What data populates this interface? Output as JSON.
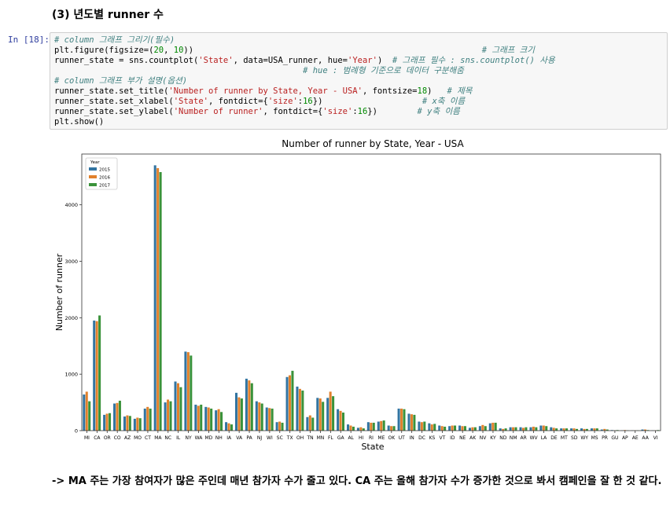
{
  "heading": "(3) 년도별 runner 수",
  "cell_prompt": "In [18]:",
  "code_lines": [
    [
      {
        "t": "# column 그래프 그리기(필수)",
        "c": "cm"
      }
    ],
    [
      {
        "t": "plt.figure(figsize=("
      },
      {
        "t": "20",
        "c": "nu"
      },
      {
        "t": ", "
      },
      {
        "t": "10",
        "c": "nu"
      },
      {
        "t": "))                                                          "
      },
      {
        "t": "# 그래프 크기",
        "c": "cm"
      }
    ],
    [
      {
        "t": "runner_state = sns.countplot("
      },
      {
        "t": "'State'",
        "c": "st"
      },
      {
        "t": ", data=USA_runner, hue="
      },
      {
        "t": "'Year'",
        "c": "st"
      },
      {
        "t": ")  "
      },
      {
        "t": "# 그래프 필수 : sns.countplot() 사용",
        "c": "cm"
      }
    ],
    [
      {
        "t": "                                                  "
      },
      {
        "t": "# hue : 범례형 기준으로 데이터 구분해줌",
        "c": "cm"
      }
    ],
    [
      {
        "t": "# column 그래프 부가 설명(옵션)",
        "c": "cm"
      }
    ],
    [
      {
        "t": "runner_state.set_title("
      },
      {
        "t": "'Number of runner by State, Year - USA'",
        "c": "st"
      },
      {
        "t": ", fontsize="
      },
      {
        "t": "18",
        "c": "nu"
      },
      {
        "t": ")   "
      },
      {
        "t": "# 제목",
        "c": "cm"
      }
    ],
    [
      {
        "t": "runner_state.set_xlabel("
      },
      {
        "t": "'State'",
        "c": "st"
      },
      {
        "t": ", fontdict={"
      },
      {
        "t": "'size'",
        "c": "st"
      },
      {
        "t": ":"
      },
      {
        "t": "16",
        "c": "nu"
      },
      {
        "t": "})                    "
      },
      {
        "t": "# x축 이름",
        "c": "cm"
      }
    ],
    [
      {
        "t": "runner_state.set_ylabel("
      },
      {
        "t": "'Number of runner'",
        "c": "st"
      },
      {
        "t": ", fontdict={"
      },
      {
        "t": "'size'",
        "c": "st"
      },
      {
        "t": ":"
      },
      {
        "t": "16",
        "c": "nu"
      },
      {
        "t": "})        "
      },
      {
        "t": "# y축 이름",
        "c": "cm"
      }
    ],
    [
      {
        "t": "plt.show()"
      }
    ]
  ],
  "note": "-> MA 주는 가장 참여자가 많은 주인데 매년 참가자 수가 줄고 있다. CA 주는 올해 참가자 수가 증가한 것으로 봐서 캠페인을 잘 한 것 같다.",
  "chart_data": {
    "type": "bar",
    "title": "Number of runner by State, Year - USA",
    "xlabel": "State",
    "ylabel": "Number of runner",
    "ylim": [
      0,
      4900
    ],
    "yticks": [
      0,
      1000,
      2000,
      3000,
      4000
    ],
    "grid": false,
    "legend": {
      "title": "Year",
      "placement": "top-left"
    },
    "colors": [
      "#3274a1",
      "#e1812c",
      "#3a923a"
    ],
    "categories": [
      "MI",
      "CA",
      "OR",
      "CO",
      "AZ",
      "MO",
      "CT",
      "MA",
      "NC",
      "IL",
      "NY",
      "WA",
      "MD",
      "NH",
      "IA",
      "VA",
      "PA",
      "NJ",
      "WI",
      "SC",
      "TX",
      "OH",
      "TN",
      "MN",
      "FL",
      "GA",
      "AL",
      "HI",
      "RI",
      "ME",
      "OK",
      "UT",
      "IN",
      "DC",
      "KS",
      "VT",
      "ID",
      "NE",
      "AK",
      "NV",
      "KY",
      "ND",
      "NM",
      "AR",
      "WV",
      "LA",
      "DE",
      "MT",
      "SD",
      "WY",
      "MS",
      "PR",
      "GU",
      "AP",
      "AE",
      "AA",
      "VI"
    ],
    "series": [
      {
        "name": "2015",
        "values": [
          640,
          1950,
          280,
          480,
          250,
          210,
          390,
          4700,
          500,
          870,
          1400,
          460,
          420,
          360,
          150,
          670,
          920,
          520,
          410,
          150,
          950,
          780,
          240,
          580,
          580,
          380,
          110,
          50,
          150,
          160,
          90,
          390,
          300,
          160,
          130,
          90,
          80,
          90,
          50,
          80,
          130,
          40,
          60,
          60,
          60,
          90,
          60,
          40,
          40,
          40,
          40,
          20,
          10,
          5,
          5,
          20,
          5
        ]
      },
      {
        "name": "2016",
        "values": [
          690,
          1940,
          300,
          490,
          270,
          230,
          420,
          4650,
          550,
          840,
          1390,
          440,
          410,
          380,
          130,
          590,
          890,
          500,
          400,
          160,
          980,
          740,
          270,
          570,
          690,
          350,
          90,
          60,
          140,
          170,
          80,
          390,
          290,
          150,
          110,
          80,
          90,
          80,
          60,
          100,
          140,
          30,
          60,
          50,
          70,
          90,
          50,
          40,
          40,
          30,
          40,
          30,
          5,
          10,
          5,
          20,
          5
        ]
      },
      {
        "name": "2017",
        "values": [
          520,
          2040,
          310,
          530,
          260,
          220,
          390,
          4580,
          520,
          770,
          1330,
          460,
          390,
          330,
          110,
          570,
          840,
          480,
          390,
          140,
          1060,
          710,
          230,
          510,
          610,
          320,
          70,
          40,
          140,
          180,
          80,
          380,
          280,
          160,
          120,
          70,
          90,
          80,
          60,
          80,
          140,
          40,
          60,
          60,
          60,
          80,
          40,
          40,
          30,
          30,
          40,
          20,
          10,
          5,
          5,
          10,
          10
        ]
      }
    ]
  }
}
